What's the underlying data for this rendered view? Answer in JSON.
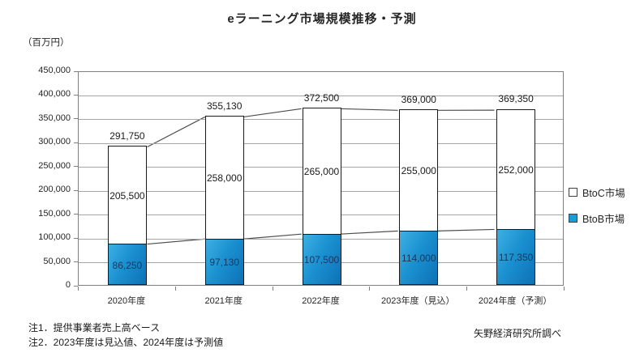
{
  "title": "eラーニング市場規模推移・予測",
  "unit_label": "（百万円）",
  "notes": [
    "注1．提供事業者売上高ベース",
    "注2．2023年度は見込値、2024年度は予測値"
  ],
  "source": "矢野経済研究所調べ",
  "colors": {
    "btob_fill_light": "#3DAFE3",
    "btob_fill_dark": "#0C72B8",
    "btob_legend": "#199CD8",
    "btoc_fill": "#FFFFFF",
    "bar_border": "#1a1a1a",
    "btob_label_text": "#17375E",
    "gridline": "#A6A6A6",
    "plot_border": "#7f7f7f"
  },
  "legend": [
    {
      "name": "btoc",
      "label": "BtoC市場",
      "fill": "#FFFFFF"
    },
    {
      "name": "btob",
      "label": "BtoB市場",
      "fill": "#199CD8"
    }
  ],
  "chart_data": {
    "type": "bar",
    "stacked": true,
    "title": "eラーニング市場規模推移・予測",
    "ylabel": "（百万円）",
    "categories": [
      "2020年度",
      "2021年度",
      "2022年度",
      "2023年度（見込）",
      "2024年度（予測）"
    ],
    "series": [
      {
        "name": "BtoB市場",
        "values": [
          86250,
          97130,
          107500,
          114000,
          117350
        ]
      },
      {
        "name": "BtoC市場",
        "values": [
          205500,
          258000,
          265000,
          255000,
          252000
        ]
      }
    ],
    "totals": [
      291750,
      355130,
      372500,
      369000,
      369350
    ],
    "ylim": [
      0,
      450000
    ],
    "ytick_step": 50000,
    "grid": true,
    "legend_position": "right",
    "series_lines": true
  }
}
